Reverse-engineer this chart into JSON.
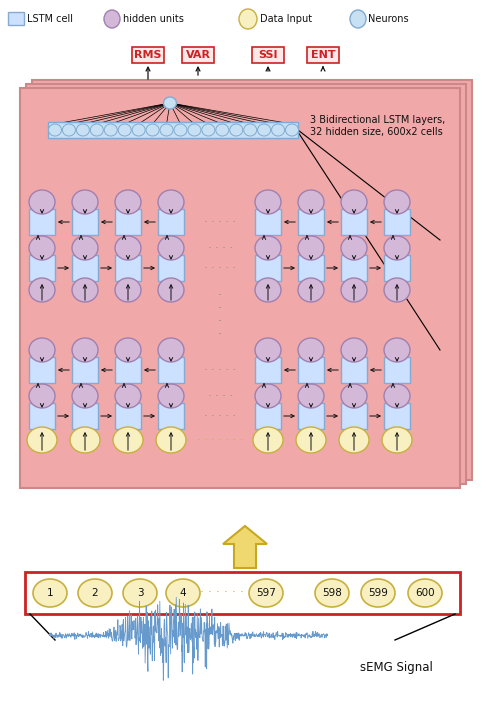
{
  "fig_width": 4.9,
  "fig_height": 7.02,
  "dpi": 100,
  "bg_color": "#ffffff",
  "lstm_bg_color": "#f0a8a8",
  "lstm_cell_color": "#cce0ff",
  "lstm_cell_edge": "#88aad0",
  "hidden_unit_color": "#d4b8d8",
  "hidden_unit_edge": "#a080b0",
  "data_input_color": "#f8f0c0",
  "data_input_edge": "#c8b040",
  "neuron_color": "#c8e0f4",
  "neuron_edge": "#80aad0",
  "feature_label_color": "#cc2222",
  "feature_bg": "#ffe8e8",
  "panel_edge": "#cc8888",
  "arrow_color": "#111111",
  "dot_color": "#888888",
  "up_arrow_face": "#f0d870",
  "up_arrow_edge": "#c8a820",
  "win_edge": "#cc2222",
  "win_bg": "#fffffe",
  "semg_color": "#6699cc",
  "text_color": "#111111",
  "feature_labels": [
    "RMS",
    "VAR",
    "SSI",
    "ENT"
  ],
  "annotation_text": "3 Bidirectional LSTM layers,\n32 hidden size, 600x2 cells",
  "semg_label": "sEMG Signal",
  "input_labels": [
    "1",
    "2",
    "3",
    "4",
    "597",
    "598",
    "599",
    "600"
  ]
}
